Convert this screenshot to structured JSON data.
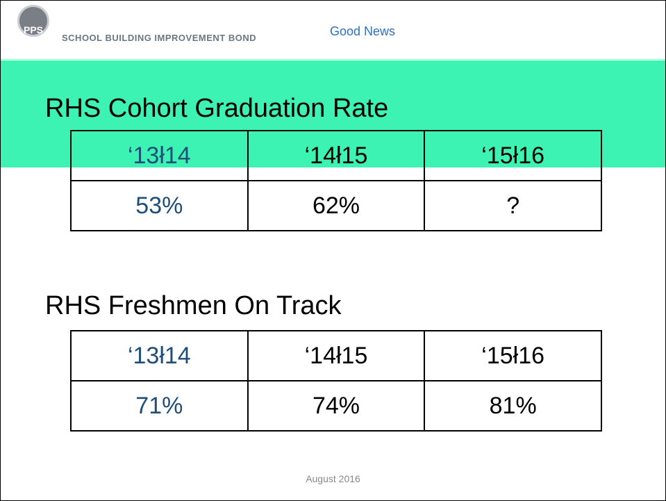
{
  "header": {
    "logo": "PPS",
    "bond": "SCHOOL BUILDING IMPROVEMENT BOND",
    "title": "Good News"
  },
  "sections": [
    {
      "title": "RHS Cohort Graduation Rate",
      "table": {
        "header": [
          "‘13ł14",
          "‘14ł15",
          "‘15ł16"
        ],
        "row": [
          "53%",
          "62%",
          "?"
        ]
      }
    },
    {
      "title": "RHS Freshmen On Track",
      "table": {
        "header": [
          "‘13ł14",
          "‘14ł15",
          "‘15ł16"
        ],
        "row": [
          "71%",
          "74%",
          "81%"
        ]
      }
    }
  ],
  "footer": "August 2016"
}
